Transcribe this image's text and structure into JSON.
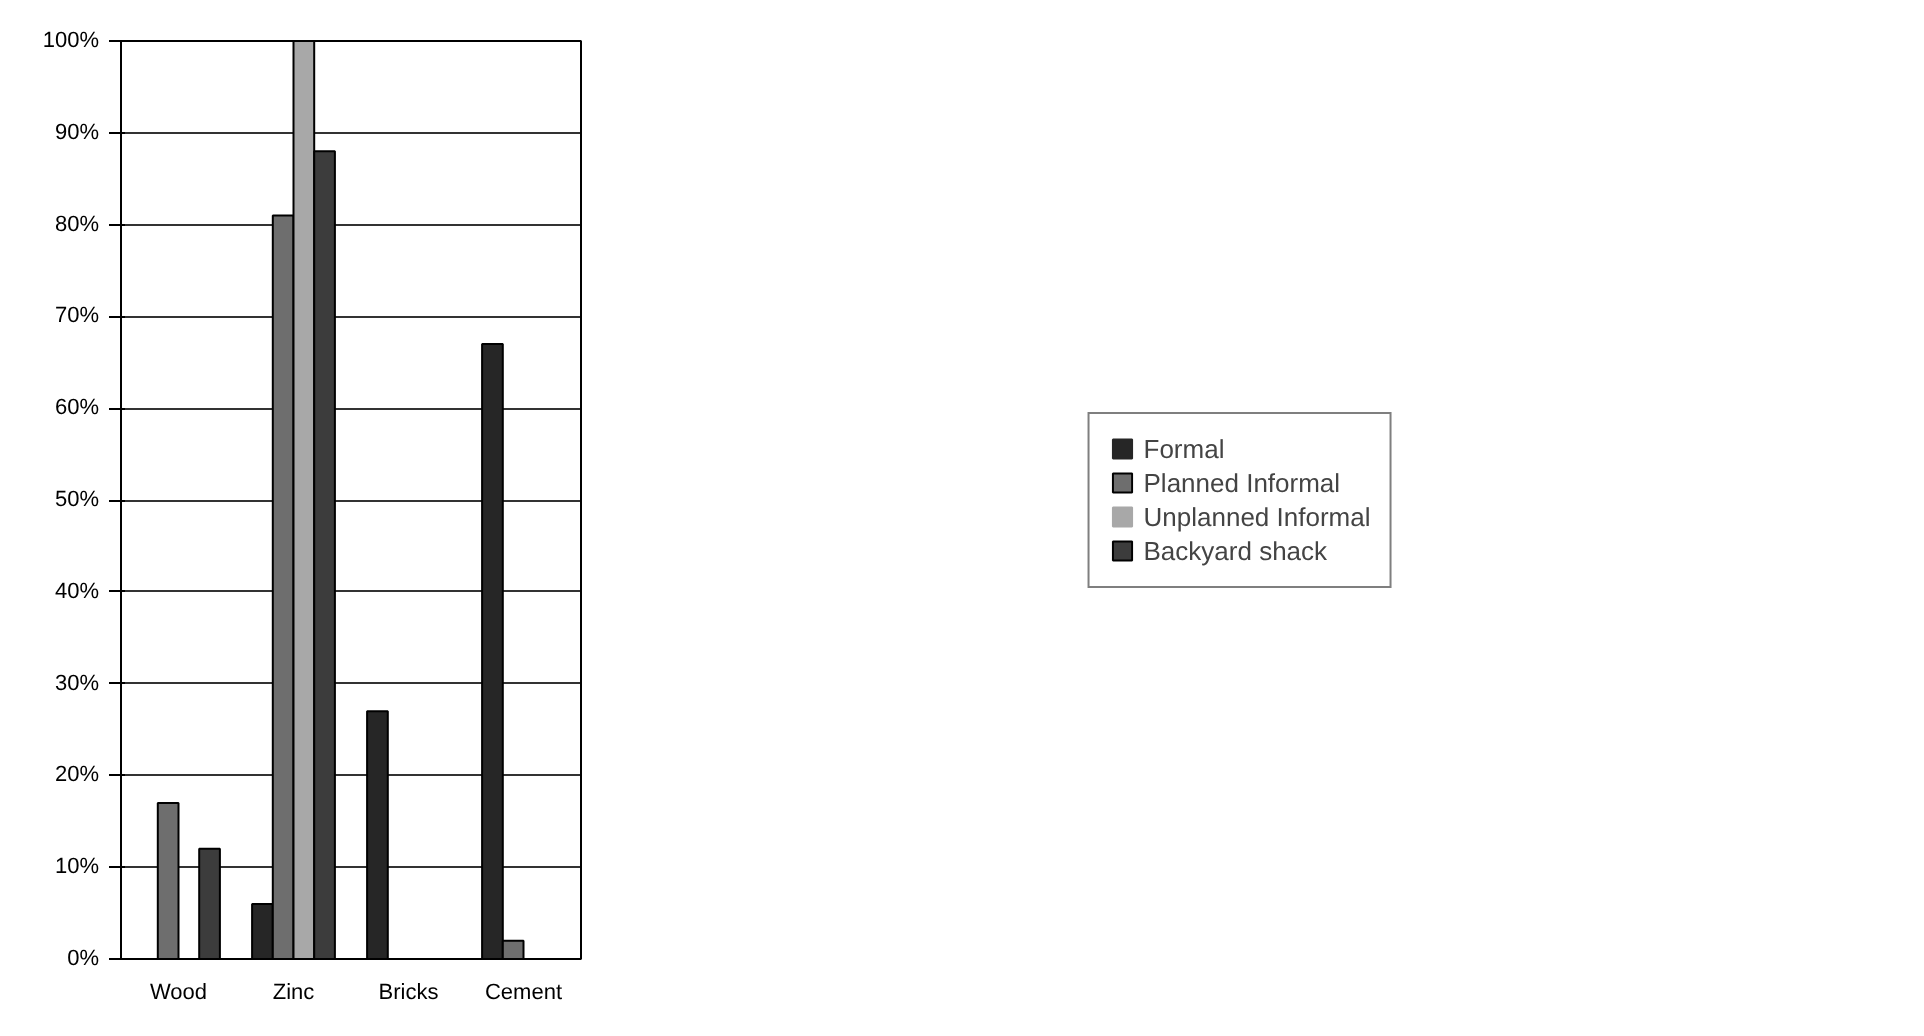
{
  "chart_data": {
    "type": "bar",
    "categories": [
      "Wood",
      "Zinc",
      "Bricks",
      "Cement"
    ],
    "series": [
      {
        "name": "Formal",
        "color": "#262626",
        "values": [
          0,
          6,
          27,
          67
        ]
      },
      {
        "name": "Planned Informal",
        "color": "#6e6e6e",
        "values": [
          17,
          81,
          0,
          2
        ]
      },
      {
        "name": "Unplanned Informal",
        "color": "#a8a8a8",
        "values": [
          0,
          100,
          0,
          0
        ]
      },
      {
        "name": "Backyard shack",
        "color": "#3c3c3c",
        "values": [
          12,
          88,
          0,
          0
        ]
      }
    ],
    "ylim": [
      0,
      100
    ],
    "yticks": [
      {
        "value": 0,
        "label": "0%"
      },
      {
        "value": 10,
        "label": "10%"
      },
      {
        "value": 20,
        "label": "20%"
      },
      {
        "value": 30,
        "label": "30%"
      },
      {
        "value": 40,
        "label": "40%"
      },
      {
        "value": 50,
        "label": "50%"
      },
      {
        "value": 60,
        "label": "60%"
      },
      {
        "value": 70,
        "label": "70%"
      },
      {
        "value": 80,
        "label": "80%"
      },
      {
        "value": 90,
        "label": "90%"
      },
      {
        "value": 100,
        "label": "100%"
      }
    ],
    "grid": "y",
    "legend": "right"
  }
}
